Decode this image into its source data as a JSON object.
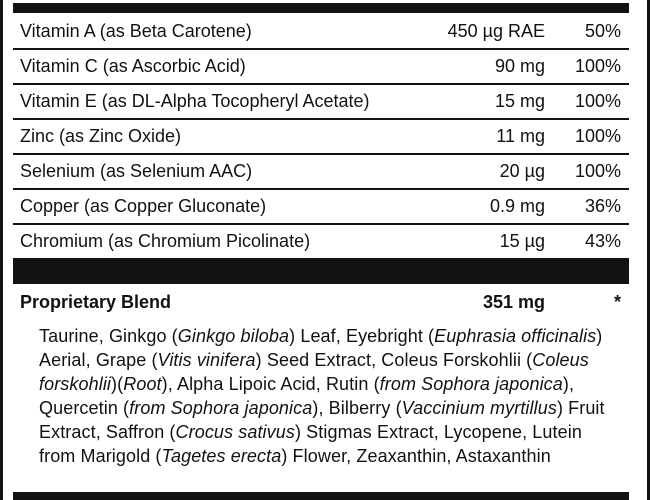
{
  "colors": {
    "ink": "#121212",
    "background": "#ffffff"
  },
  "nutrients": [
    {
      "name": "Vitamin A (as Beta Carotene)",
      "amount": "450 µg RAE",
      "daily_value": "50%"
    },
    {
      "name": "Vitamin C (as Ascorbic Acid)",
      "amount": "90 mg",
      "daily_value": "100%"
    },
    {
      "name": "Vitamin E (as DL-Alpha Tocopheryl Acetate)",
      "amount": "15 mg",
      "daily_value": "100%"
    },
    {
      "name": "Zinc (as Zinc Oxide)",
      "amount": "11 mg",
      "daily_value": "100%"
    },
    {
      "name": "Selenium (as Selenium AAC)",
      "amount": "20 µg",
      "daily_value": "100%"
    },
    {
      "name": "Copper (as Copper Gluconate)",
      "amount": "0.9 mg",
      "daily_value": "36%"
    },
    {
      "name": "Chromium (as Chromium Picolinate)",
      "amount": "15 µg",
      "daily_value": "43%"
    }
  ],
  "blend": {
    "name": "Proprietary Blend",
    "amount": "351 mg",
    "daily_value": "*",
    "ingredients_segments": [
      {
        "text": "Taurine, Ginkgo (",
        "italic": false
      },
      {
        "text": "Ginkgo biloba",
        "italic": true
      },
      {
        "text": ") Leaf, Eyebright (",
        "italic": false
      },
      {
        "text": "Euphrasia officinalis",
        "italic": true
      },
      {
        "text": ") Aerial, Grape (",
        "italic": false
      },
      {
        "text": "Vitis vinifera",
        "italic": true
      },
      {
        "text": ") Seed Extract, Coleus Forskohlii (",
        "italic": false
      },
      {
        "text": "Coleus forskohlii",
        "italic": true
      },
      {
        "text": ")(",
        "italic": false
      },
      {
        "text": "Root",
        "italic": true
      },
      {
        "text": "), Alpha Lipoic Acid, Rutin (",
        "italic": false
      },
      {
        "text": "from Sophora japonica",
        "italic": true
      },
      {
        "text": "), Quercetin (",
        "italic": false
      },
      {
        "text": "from Sophora japonica",
        "italic": true
      },
      {
        "text": "), Bilberry (",
        "italic": false
      },
      {
        "text": "Vaccinium myrtillus",
        "italic": true
      },
      {
        "text": ") Fruit Extract, Saffron (",
        "italic": false
      },
      {
        "text": "Crocus sativus",
        "italic": true
      },
      {
        "text": ") Stigmas Extract, Lycopene, Lutein from Marigold (",
        "italic": false
      },
      {
        "text": "Tagetes erecta",
        "italic": true
      },
      {
        "text": ") Flower, Zeaxanthin, Astaxanthin",
        "italic": false
      }
    ]
  }
}
